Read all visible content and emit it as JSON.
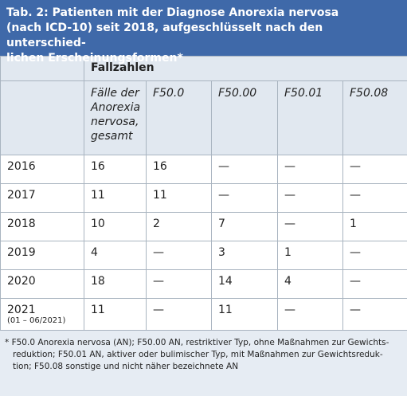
{
  "title_lines": [
    "Tab. 2: Patienten mit der Diagnose Anorexia nervosa",
    "(nach ICD-10) seit 2018, aufgeschlüsselt nach den unterschied-",
    "lichen Erscheinungsformen*"
  ],
  "table": {
    "group_header": "Fallzahlen",
    "columns": [
      "Fälle der Anorexia nervosa, gesamt",
      "F50.0",
      "F50.00",
      "F50.01",
      "F50.08"
    ],
    "rows": [
      {
        "year": "2016",
        "cells": [
          "16",
          "16",
          "—",
          "—",
          "—"
        ]
      },
      {
        "year": "2017",
        "cells": [
          "11",
          "11",
          "—",
          "—",
          "—"
        ]
      },
      {
        "year": "2018",
        "cells": [
          "10",
          "2",
          "7",
          "—",
          "1"
        ]
      },
      {
        "year": "2019",
        "cells": [
          "4",
          "—",
          "3",
          "1",
          "—"
        ]
      },
      {
        "year": "2020",
        "cells": [
          "18",
          "—",
          "14",
          "4",
          "—"
        ]
      },
      {
        "year": "2021",
        "note": "(01 – 06/2021)",
        "cells": [
          "11",
          "—",
          "11",
          "—",
          "—"
        ]
      }
    ]
  },
  "footnote_lines": [
    "* F50.0 Anorexia nervosa (AN); F50.00 AN, restriktiver Typ, ohne Maßnahmen zur Gewichts-",
    "reduktion; F50.01 AN, aktiver oder bulimischer Typ, mit Maßnahmen zur Gewichtsreduk-",
    "tion; F50.08 sonstige und nicht näher bezeichnete AN"
  ]
}
